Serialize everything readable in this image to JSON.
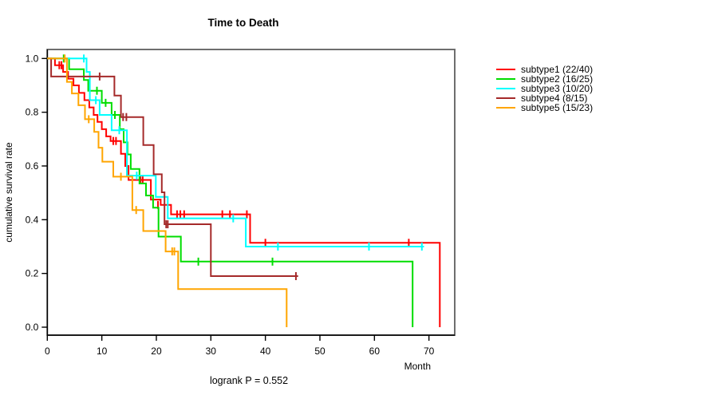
{
  "chart_data": {
    "type": "line",
    "subtype": "kaplan-meier-step",
    "title": "Time to Death",
    "xlabel": "Month",
    "ylabel": "cumulative survival rate",
    "note": "logrank P = 0.552",
    "xlim": [
      0,
      74.7
    ],
    "ylim": [
      0,
      1.0
    ],
    "x_ticks": [
      0,
      10,
      20,
      30,
      40,
      50,
      60,
      70
    ],
    "y_ticks": [
      "0.0",
      "0.2",
      "0.4",
      "0.6",
      "0.8",
      "1.0"
    ],
    "grid": false,
    "legend_position": "right-outside",
    "box_color": "#6e6e6e",
    "axis_color": "#000000",
    "series": [
      {
        "name": "subtype1",
        "label": "subtype1 (22/40)",
        "color": "#ff0000",
        "points": [
          [
            0,
            1.0
          ],
          [
            1.4,
            0.975
          ],
          [
            2.9,
            0.95
          ],
          [
            3.8,
            0.925
          ],
          [
            4.8,
            0.9
          ],
          [
            5.8,
            0.872
          ],
          [
            6.8,
            0.845
          ],
          [
            7.7,
            0.818
          ],
          [
            8.5,
            0.79
          ],
          [
            9.2,
            0.764
          ],
          [
            10.0,
            0.737
          ],
          [
            10.8,
            0.71
          ],
          [
            11.6,
            0.693
          ],
          [
            13.5,
            0.645
          ],
          [
            14.3,
            0.6
          ],
          [
            14.9,
            0.548
          ],
          [
            19.0,
            0.475
          ],
          [
            20.8,
            0.455
          ],
          [
            22.7,
            0.42
          ],
          [
            37.2,
            0.314
          ],
          [
            72.0,
            0.0
          ]
        ],
        "end_x": 72.0,
        "censors": [
          [
            2.2,
            0.975
          ],
          [
            2.6,
            0.975
          ],
          [
            12.1,
            0.693
          ],
          [
            12.6,
            0.693
          ],
          [
            17.1,
            0.548
          ],
          [
            17.5,
            0.548
          ],
          [
            20.3,
            0.455
          ],
          [
            23.8,
            0.42
          ],
          [
            24.4,
            0.42
          ],
          [
            25.1,
            0.42
          ],
          [
            32.1,
            0.42
          ],
          [
            33.5,
            0.42
          ],
          [
            36.6,
            0.42
          ],
          [
            40.0,
            0.314
          ],
          [
            66.3,
            0.314
          ]
        ]
      },
      {
        "name": "subtype2",
        "label": "subtype2 (16/25)",
        "color": "#00dd00",
        "points": [
          [
            0,
            1.0
          ],
          [
            4.0,
            0.96
          ],
          [
            6.7,
            0.92
          ],
          [
            7.5,
            0.88
          ],
          [
            10.0,
            0.835
          ],
          [
            11.8,
            0.79
          ],
          [
            13.3,
            0.737
          ],
          [
            14.0,
            0.688
          ],
          [
            14.7,
            0.643
          ],
          [
            15.3,
            0.589
          ],
          [
            16.9,
            0.535
          ],
          [
            18.1,
            0.49
          ],
          [
            19.4,
            0.445
          ],
          [
            20.4,
            0.337
          ],
          [
            24.5,
            0.244
          ],
          [
            67.0,
            0.0
          ]
        ],
        "end_x": 67.0,
        "censors": [
          [
            3.0,
            1.0
          ],
          [
            9.1,
            0.88
          ],
          [
            10.7,
            0.835
          ],
          [
            12.4,
            0.79
          ],
          [
            27.7,
            0.244
          ],
          [
            41.3,
            0.244
          ]
        ]
      },
      {
        "name": "subtype3",
        "label": "subtype3 (10/20)",
        "color": "#00ffff",
        "points": [
          [
            0,
            1.0
          ],
          [
            7.2,
            0.95
          ],
          [
            7.8,
            0.845
          ],
          [
            9.6,
            0.79
          ],
          [
            11.8,
            0.733
          ],
          [
            14.6,
            0.564
          ],
          [
            19.9,
            0.485
          ],
          [
            22.1,
            0.405
          ],
          [
            36.4,
            0.3
          ]
        ],
        "end_x": 69.1,
        "censors": [
          [
            6.7,
            1.0
          ],
          [
            8.9,
            0.845
          ],
          [
            13.2,
            0.733
          ],
          [
            16.4,
            0.564
          ],
          [
            34.1,
            0.405
          ],
          [
            42.3,
            0.3
          ],
          [
            59.0,
            0.3
          ],
          [
            68.7,
            0.3
          ]
        ]
      },
      {
        "name": "subtype4",
        "label": "subtype4 (8/15)",
        "color": "#a52a2a",
        "points": [
          [
            0,
            1.0
          ],
          [
            0.7,
            0.933
          ],
          [
            12.3,
            0.862
          ],
          [
            13.5,
            0.782
          ],
          [
            17.6,
            0.678
          ],
          [
            19.5,
            0.569
          ],
          [
            21.0,
            0.502
          ],
          [
            21.5,
            0.383
          ],
          [
            30.0,
            0.19
          ]
        ],
        "end_x": 46.0,
        "censors": [
          [
            9.6,
            0.933
          ],
          [
            13.9,
            0.782
          ],
          [
            14.5,
            0.782
          ],
          [
            21.8,
            0.383
          ],
          [
            22.1,
            0.383
          ],
          [
            45.6,
            0.19
          ]
        ]
      },
      {
        "name": "subtype5",
        "label": "subtype5 (15/23)",
        "color": "#ffa500",
        "points": [
          [
            0,
            1.0
          ],
          [
            3.6,
            0.913
          ],
          [
            4.5,
            0.87
          ],
          [
            5.7,
            0.826
          ],
          [
            6.9,
            0.774
          ],
          [
            8.6,
            0.727
          ],
          [
            9.4,
            0.668
          ],
          [
            10.1,
            0.616
          ],
          [
            12.1,
            0.56
          ],
          [
            15.6,
            0.436
          ],
          [
            17.6,
            0.358
          ],
          [
            21.7,
            0.282
          ],
          [
            24.0,
            0.142
          ],
          [
            43.9,
            0.0
          ]
        ],
        "end_x": 43.9,
        "censors": [
          [
            3.2,
            1.0
          ],
          [
            7.6,
            0.774
          ],
          [
            13.5,
            0.56
          ],
          [
            16.3,
            0.436
          ],
          [
            22.9,
            0.282
          ],
          [
            23.3,
            0.282
          ]
        ]
      }
    ]
  }
}
